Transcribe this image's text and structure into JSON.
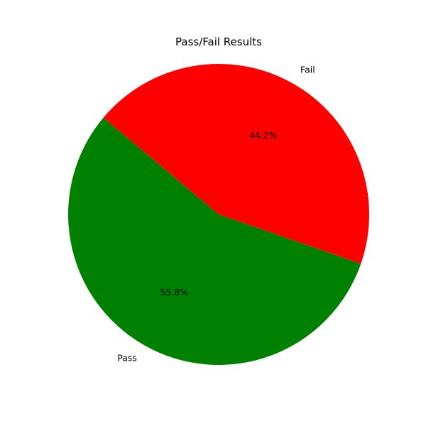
{
  "chart_data": {
    "type": "pie",
    "title": "Pass/Fail Results",
    "slices": [
      {
        "label": "Pass",
        "value": 55.8,
        "pct_label": "55.8%",
        "color": "#008000"
      },
      {
        "label": "Fail",
        "value": 44.2,
        "pct_label": "44.2%",
        "color": "#ff0000"
      }
    ],
    "start_angle_deg": 140,
    "direction": "counterclockwise",
    "legend": "none"
  }
}
